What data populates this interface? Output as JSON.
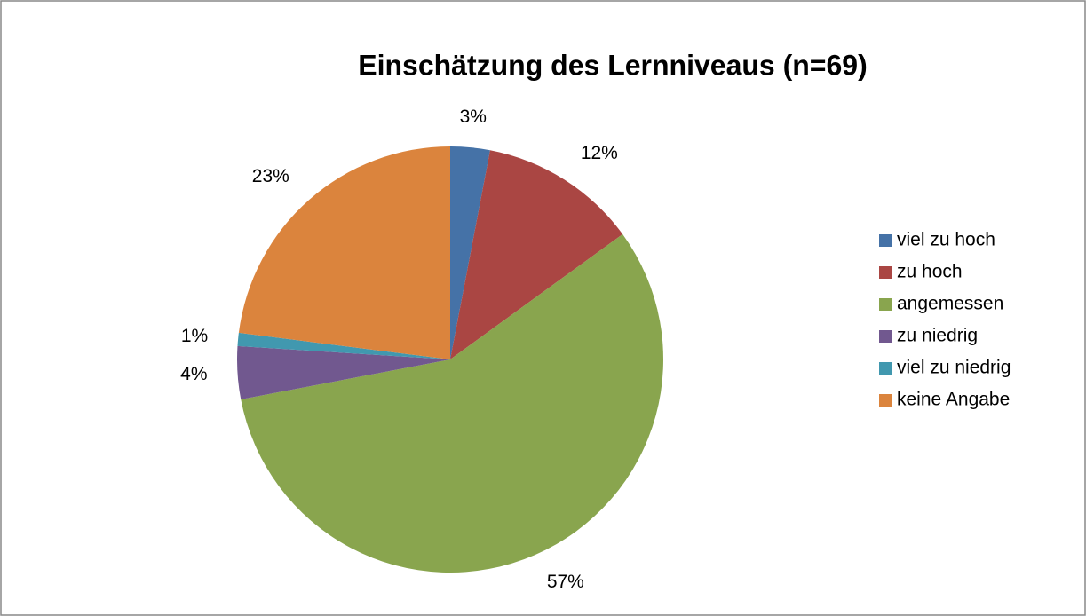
{
  "chart_data": {
    "type": "pie",
    "title": "Einschätzung des Lernniveaus (n=69)",
    "categories": [
      "viel zu hoch",
      "zu hoch",
      "angemessen",
      "zu niedrig",
      "viel zu niedrig",
      "keine Angabe"
    ],
    "values": [
      3,
      12,
      57,
      4,
      1,
      23
    ],
    "value_labels": [
      "3%",
      "12%",
      "57%",
      "4%",
      "1%",
      "23%"
    ],
    "colors": [
      "#4572a7",
      "#aa4643",
      "#89a54e",
      "#71588f",
      "#4198af",
      "#db843d"
    ],
    "legend": "right"
  }
}
